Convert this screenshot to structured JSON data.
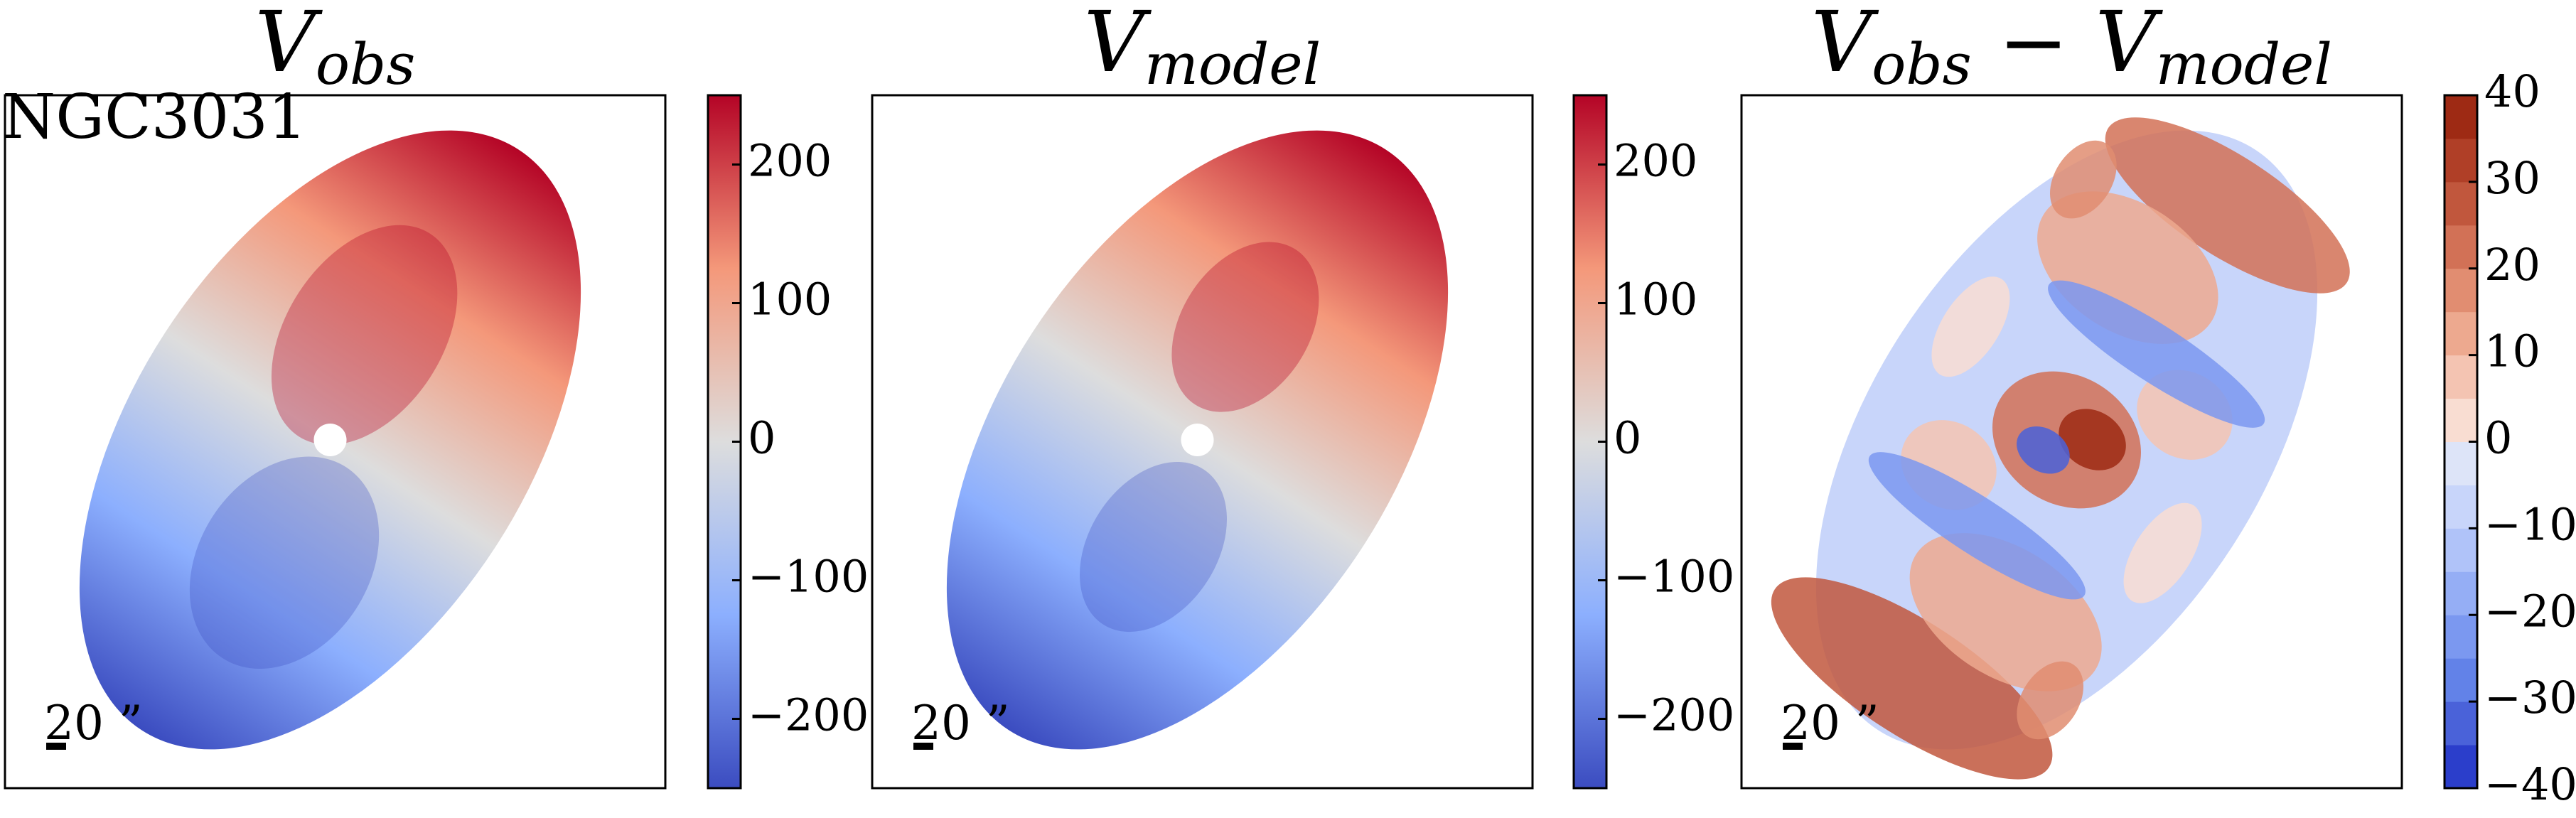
{
  "chart_data": [
    {
      "type": "velocity_map",
      "title": [
        {
          "text": "V",
          "style": "italic"
        },
        {
          "text": "obs",
          "style": "sub"
        }
      ],
      "annotation": "NGC3031",
      "scale_label": "20 ”",
      "ylim": [
        -250,
        250
      ],
      "yticks": [
        {
          "value": -200,
          "label": "−200"
        },
        {
          "value": -100,
          "label": "−100"
        },
        0,
        100,
        200
      ],
      "colormap": [
        "#3b4cc0",
        "#8caffe",
        "#dddddd",
        "#f4987a",
        "#b40426"
      ]
    },
    {
      "type": "model_map",
      "title": [
        {
          "text": "V",
          "style": "italic"
        },
        {
          "text": "model",
          "style": "sub"
        }
      ],
      "scale_label": "20 ”",
      "ylim": [
        -250,
        250
      ],
      "yticks": [
        {
          "value": -200,
          "label": "−200"
        },
        {
          "value": -100,
          "label": "−100"
        },
        0,
        100,
        200
      ],
      "colormap": [
        "#3b4cc0",
        "#8caffe",
        "#dddddd",
        "#f4987a",
        "#b40426"
      ]
    },
    {
      "type": "residual_map",
      "title": [
        {
          "text": "V",
          "style": "italic"
        },
        {
          "text": "obs",
          "style": "sub"
        },
        {
          "text": " − ",
          "style": "normal"
        },
        {
          "text": "V",
          "style": "italic"
        },
        {
          "text": "model",
          "style": "sub"
        }
      ],
      "scale_label": "20 ”",
      "ylim": [
        -40,
        40
      ],
      "yticks": [
        {
          "value": -40,
          "label": "−40"
        },
        {
          "value": -30,
          "label": "−30"
        },
        {
          "value": -20,
          "label": "−20"
        },
        {
          "value": -10,
          "label": "−10"
        },
        0,
        10,
        20,
        30,
        40
      ],
      "colors": [
        "#2b3ecb",
        "#4a62d9",
        "#6282e8",
        "#7b98f0",
        "#95aef5",
        "#b0c3f9",
        "#c8d5fa",
        "#dde4f8",
        "#f9ddd2",
        "#f4c4b2",
        "#eda98f",
        "#e18d71",
        "#d27156",
        "#c1573d",
        "#b03f27",
        "#9e2a14"
      ]
    }
  ]
}
